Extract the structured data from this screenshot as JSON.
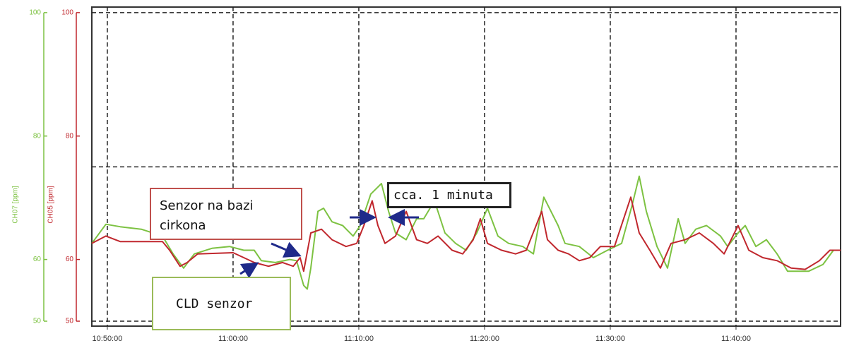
{
  "chart_data": {
    "type": "line",
    "ylabel": "CH07 [ppm]",
    "y2label": "CH05 [ppm]",
    "xlim": [
      "10:48:46",
      "11:48:19"
    ],
    "xticks": [
      "10:50:00",
      "11:00:00",
      "11:10:00",
      "11:20:00",
      "11:30:00",
      "11:40:00"
    ],
    "ylim": [
      49.2,
      100.9
    ],
    "yticks": [
      50,
      60,
      80,
      100
    ],
    "y2lim": [
      49.2,
      100.9
    ],
    "y2ticks": [
      50,
      60,
      80,
      100
    ],
    "ygrid": [
      50,
      75,
      100
    ],
    "xgrid": true,
    "series": [
      {
        "color": "#7dc242",
        "x": [
          "10:48:46",
          "10:49:53",
          "10:51:01",
          "10:52:42",
          "10:54:23",
          "10:55:14",
          "10:56:04",
          "10:56:55",
          "10:58:19",
          "10:59:43",
          "11:00:51",
          "11:01:41",
          "11:02:15",
          "11:03:22",
          "11:04:30",
          "11:05:03",
          "11:05:37",
          "11:05:54",
          "11:06:11",
          "11:06:45",
          "11:07:12",
          "11:07:52",
          "11:08:43",
          "11:09:33",
          "11:10:07",
          "11:10:57",
          "11:11:48",
          "11:12:22",
          "11:12:55",
          "11:13:46",
          "11:14:36",
          "11:15:10",
          "11:16:01",
          "11:16:51",
          "11:17:42",
          "11:18:32",
          "11:19:23",
          "11:20:14",
          "11:21:04",
          "11:21:55",
          "11:23:02",
          "11:23:53",
          "11:24:43",
          "11:25:51",
          "11:26:24",
          "11:27:32",
          "11:28:39",
          "11:29:47",
          "11:30:54",
          "11:31:45",
          "11:32:18",
          "11:32:52",
          "11:33:43",
          "11:34:33",
          "11:35:24",
          "11:35:57",
          "11:36:48",
          "11:37:39",
          "11:38:46",
          "11:39:20",
          "11:40:10",
          "11:40:44",
          "11:41:35",
          "11:42:25",
          "11:43:16",
          "11:44:06",
          "11:44:57",
          "11:45:47",
          "11:46:55",
          "11:47:45",
          "11:48:19"
        ],
        "values": [
          62.6,
          65.7,
          65.3,
          64.9,
          63.8,
          60.9,
          58.6,
          60.9,
          61.8,
          62.1,
          61.5,
          61.5,
          59.8,
          59.5,
          60.0,
          59.8,
          55.8,
          55.2,
          58.6,
          67.8,
          68.3,
          66.1,
          65.5,
          63.8,
          65.5,
          70.6,
          72.3,
          67.8,
          64.3,
          63.2,
          66.6,
          66.6,
          69.5,
          64.3,
          62.6,
          61.5,
          64.3,
          68.3,
          63.8,
          62.6,
          62.1,
          60.9,
          70.1,
          65.5,
          62.6,
          62.1,
          60.3,
          61.5,
          62.6,
          68.9,
          73.5,
          67.8,
          62.1,
          58.6,
          66.6,
          62.6,
          64.9,
          65.5,
          63.8,
          62.1,
          64.3,
          65.5,
          62.1,
          63.2,
          60.9,
          58.1,
          58.1,
          58.1,
          59.2,
          61.5,
          61.5
        ]
      },
      {
        "color": "#c0272d",
        "axis": "y2",
        "x": [
          "10:48:46",
          "10:49:53",
          "10:51:01",
          "10:54:23",
          "10:54:57",
          "10:55:47",
          "10:56:21",
          "10:57:11",
          "11:00:00",
          "11:00:51",
          "11:01:41",
          "11:02:49",
          "11:03:56",
          "11:04:47",
          "11:05:20",
          "11:05:37",
          "11:06:11",
          "11:07:02",
          "11:07:52",
          "11:08:59",
          "11:09:50",
          "11:10:24",
          "11:11:04",
          "11:11:31",
          "11:12:05",
          "11:12:55",
          "11:13:46",
          "11:14:36",
          "11:15:27",
          "11:16:18",
          "11:17:25",
          "11:18:16",
          "11:19:06",
          "11:19:40",
          "11:20:14",
          "11:21:21",
          "11:22:28",
          "11:23:19",
          "11:24:33",
          "11:25:00",
          "11:25:51",
          "11:26:41",
          "11:27:32",
          "11:28:22",
          "11:29:13",
          "11:30:20",
          "11:31:38",
          "11:32:18",
          "11:33:09",
          "11:33:59",
          "11:34:50",
          "11:35:57",
          "11:37:05",
          "11:38:12",
          "11:39:03",
          "11:40:10",
          "11:41:01",
          "11:42:08",
          "11:43:16",
          "11:44:23",
          "11:45:30",
          "11:46:38",
          "11:47:28",
          "11:48:19"
        ],
        "values": [
          62.6,
          63.8,
          62.9,
          62.9,
          61.5,
          58.9,
          59.5,
          60.9,
          61.1,
          60.3,
          59.5,
          58.9,
          59.5,
          58.9,
          60.3,
          58.1,
          64.3,
          64.9,
          63.2,
          62.1,
          62.6,
          65.5,
          69.5,
          65.5,
          62.6,
          63.8,
          67.8,
          63.2,
          62.6,
          63.8,
          61.5,
          60.9,
          63.2,
          66.6,
          62.6,
          61.5,
          60.9,
          61.5,
          67.8,
          63.2,
          61.5,
          60.9,
          59.8,
          60.3,
          62.1,
          62.1,
          70.1,
          64.3,
          61.5,
          58.6,
          62.6,
          63.2,
          64.3,
          62.6,
          60.9,
          65.5,
          61.5,
          60.3,
          59.8,
          58.6,
          58.4,
          59.8,
          61.5,
          61.5
        ]
      }
    ],
    "annotations": [
      "Senzor na bazi cirkona",
      "CLD senzor",
      "cca. 1 minuta"
    ]
  }
}
